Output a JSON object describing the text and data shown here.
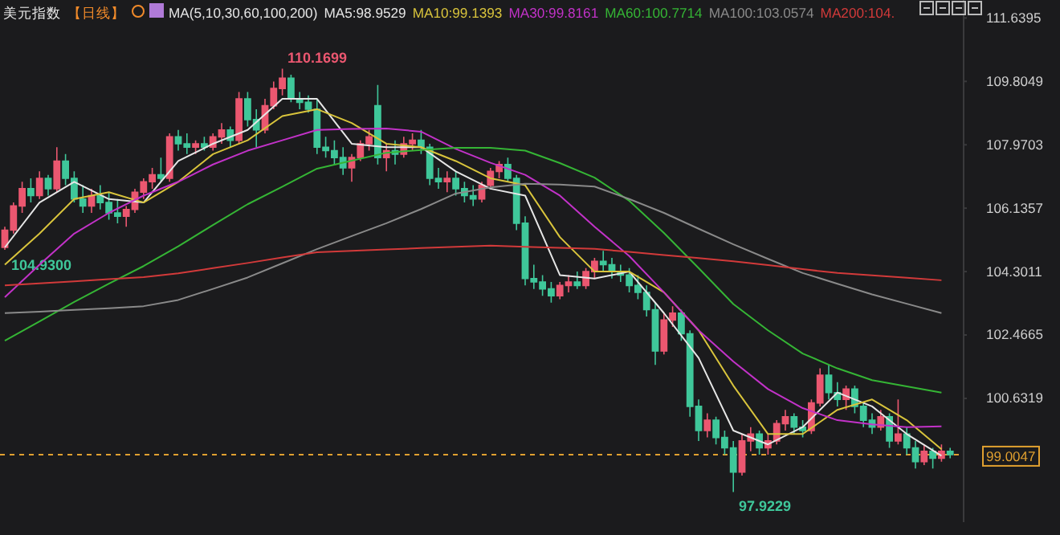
{
  "chart_data": [
    {
      "type": "candlestick",
      "title": "美元指数",
      "subtitle": "【日线】",
      "annotations": [
        "110.1699",
        "104.9300",
        "97.9229"
      ],
      "categories": [
        null,
        null,
        null,
        null,
        null,
        null,
        null,
        null,
        null,
        null,
        null,
        null,
        null,
        null,
        null,
        null,
        null,
        null,
        null,
        null,
        null,
        null,
        null,
        null,
        null,
        null,
        null,
        null,
        null,
        null,
        null,
        null,
        null,
        null,
        null,
        null,
        null,
        null,
        null,
        null,
        null,
        null,
        null,
        null,
        null,
        null,
        null,
        null,
        null,
        null,
        null,
        null,
        null,
        null,
        null,
        null,
        null,
        null,
        null,
        null,
        null,
        null,
        null,
        null,
        null,
        null,
        null,
        null,
        null,
        null,
        null,
        null,
        null,
        null,
        null,
        null,
        null,
        null,
        null,
        null,
        null,
        null,
        null,
        null,
        null,
        null,
        null,
        null,
        null,
        null,
        null,
        null,
        null,
        null,
        null,
        null,
        null,
        null,
        null,
        null,
        null,
        null,
        null,
        null,
        null,
        null,
        null,
        null,
        null,
        null
      ],
      "ohlc": [
        [
          105.0,
          105.6,
          104.93,
          105.5
        ],
        [
          105.5,
          106.3,
          105.4,
          106.2
        ],
        [
          106.2,
          106.9,
          106.0,
          106.7
        ],
        [
          106.7,
          107.0,
          106.3,
          106.5
        ],
        [
          106.5,
          107.2,
          106.4,
          107.0
        ],
        [
          107.0,
          107.1,
          106.5,
          106.7
        ],
        [
          106.7,
          107.9,
          106.6,
          107.5
        ],
        [
          107.5,
          107.7,
          106.8,
          107.0
        ],
        [
          107.0,
          107.2,
          106.3,
          106.4
        ],
        [
          106.4,
          106.8,
          106.0,
          106.2
        ],
        [
          106.2,
          106.7,
          106.0,
          106.5
        ],
        [
          106.5,
          106.8,
          106.1,
          106.3
        ],
        [
          106.3,
          106.6,
          105.8,
          106.0
        ],
        [
          106.0,
          106.4,
          105.7,
          105.9
        ],
        [
          105.9,
          106.2,
          105.6,
          106.1
        ],
        [
          106.1,
          106.7,
          106.0,
          106.6
        ],
        [
          106.6,
          107.0,
          106.4,
          106.9
        ],
        [
          106.9,
          107.3,
          106.7,
          107.1
        ],
        [
          107.1,
          107.6,
          106.9,
          107.0
        ],
        [
          107.0,
          108.3,
          106.9,
          108.2
        ],
        [
          108.2,
          108.4,
          107.8,
          108.0
        ],
        [
          108.0,
          108.3,
          107.7,
          107.9
        ],
        [
          107.9,
          108.1,
          107.7,
          108.0
        ],
        [
          108.0,
          108.2,
          107.8,
          107.9
        ],
        [
          107.9,
          108.3,
          107.8,
          108.2
        ],
        [
          108.2,
          108.6,
          108.0,
          108.4
        ],
        [
          108.4,
          108.5,
          107.9,
          108.1
        ],
        [
          108.1,
          109.5,
          108.0,
          109.3
        ],
        [
          109.3,
          109.5,
          108.5,
          108.7
        ],
        [
          108.7,
          109.0,
          107.9,
          108.4
        ],
        [
          108.4,
          109.3,
          108.3,
          109.1
        ],
        [
          109.1,
          109.8,
          109.0,
          109.6
        ],
        [
          109.6,
          110.1699,
          109.4,
          109.9
        ],
        [
          109.9,
          110.0,
          109.2,
          109.3
        ],
        [
          109.3,
          109.5,
          109.0,
          109.2
        ],
        [
          109.2,
          109.4,
          108.9,
          109.0
        ],
        [
          109.0,
          109.3,
          107.7,
          107.9
        ],
        [
          107.9,
          108.2,
          107.6,
          107.8
        ],
        [
          107.8,
          108.1,
          107.4,
          107.6
        ],
        [
          107.6,
          107.9,
          107.1,
          107.3
        ],
        [
          107.3,
          107.7,
          106.9,
          107.6
        ],
        [
          107.6,
          108.1,
          107.5,
          108.0
        ],
        [
          108.0,
          108.4,
          107.8,
          108.2
        ],
        [
          109.1,
          109.7,
          107.4,
          107.6
        ],
        [
          107.6,
          108.0,
          107.2,
          107.8
        ],
        [
          107.8,
          108.1,
          107.4,
          107.7
        ],
        [
          107.7,
          108.2,
          107.6,
          108.0
        ],
        [
          108.0,
          108.3,
          107.8,
          108.1
        ],
        [
          108.1,
          108.4,
          107.7,
          107.9
        ],
        [
          107.9,
          108.0,
          106.8,
          107.0
        ],
        [
          107.0,
          107.3,
          106.7,
          106.9
        ],
        [
          106.9,
          107.2,
          106.6,
          107.0
        ],
        [
          107.0,
          107.2,
          106.5,
          106.7
        ],
        [
          106.7,
          106.9,
          106.3,
          106.5
        ],
        [
          106.5,
          106.8,
          106.2,
          106.4
        ],
        [
          106.4,
          106.9,
          106.3,
          106.8
        ],
        [
          106.8,
          107.3,
          106.7,
          107.2
        ],
        [
          107.2,
          107.5,
          107.0,
          107.4
        ],
        [
          107.4,
          107.6,
          106.9,
          107.0
        ],
        [
          107.0,
          107.1,
          105.5,
          105.7
        ],
        [
          105.7,
          105.9,
          103.9,
          104.1
        ],
        [
          104.1,
          104.5,
          103.8,
          104.0
        ],
        [
          104.0,
          104.2,
          103.6,
          103.8
        ],
        [
          103.8,
          104.0,
          103.4,
          103.6
        ],
        [
          103.6,
          104.0,
          103.5,
          103.9
        ],
        [
          103.9,
          104.2,
          103.7,
          104.0
        ],
        [
          104.0,
          104.3,
          103.8,
          103.9
        ],
        [
          103.9,
          104.4,
          103.8,
          104.3
        ],
        [
          104.3,
          104.7,
          104.1,
          104.6
        ],
        [
          104.6,
          104.9,
          104.3,
          104.5
        ],
        [
          104.5,
          104.7,
          104.1,
          104.3
        ],
        [
          104.3,
          104.5,
          104.0,
          104.2
        ],
        [
          104.2,
          104.4,
          103.7,
          103.9
        ],
        [
          103.9,
          104.2,
          103.5,
          103.7
        ],
        [
          103.7,
          103.9,
          103.0,
          103.2
        ],
        [
          103.2,
          103.4,
          101.6,
          102.0
        ],
        [
          102.0,
          103.1,
          101.9,
          102.9
        ],
        [
          102.9,
          103.3,
          102.7,
          103.1
        ],
        [
          103.1,
          103.2,
          102.3,
          102.5
        ],
        [
          102.5,
          102.6,
          100.1,
          100.4
        ],
        [
          100.4,
          100.6,
          99.4,
          99.7
        ],
        [
          99.7,
          100.2,
          99.5,
          100.0
        ],
        [
          100.0,
          100.1,
          99.3,
          99.5
        ],
        [
          99.5,
          99.7,
          99.0,
          99.2
        ],
        [
          99.2,
          99.4,
          97.9229,
          98.5
        ],
        [
          98.5,
          99.6,
          98.4,
          99.4
        ],
        [
          99.4,
          99.8,
          99.1,
          99.6
        ],
        [
          99.6,
          99.7,
          99.0,
          99.2
        ],
        [
          99.2,
          99.6,
          99.0,
          99.4
        ],
        [
          99.4,
          100.0,
          99.3,
          99.9
        ],
        [
          99.9,
          100.3,
          99.7,
          100.1
        ],
        [
          100.1,
          100.2,
          99.6,
          99.8
        ],
        [
          99.8,
          100.0,
          99.5,
          99.7
        ],
        [
          99.7,
          100.6,
          99.6,
          100.5
        ],
        [
          100.5,
          101.5,
          100.4,
          101.3
        ],
        [
          101.3,
          101.6,
          100.6,
          100.8
        ],
        [
          100.8,
          101.1,
          100.4,
          100.6
        ],
        [
          100.6,
          101.0,
          100.3,
          100.9
        ],
        [
          100.9,
          101.0,
          100.2,
          100.4
        ],
        [
          100.4,
          100.5,
          99.8,
          100.0
        ],
        [
          100.0,
          100.2,
          99.6,
          99.8
        ],
        [
          99.8,
          100.3,
          99.7,
          100.1
        ],
        [
          100.1,
          100.2,
          99.2,
          99.4
        ],
        [
          99.4,
          100.6,
          99.3,
          99.6
        ],
        [
          99.6,
          99.8,
          99.0,
          99.2
        ],
        [
          99.2,
          99.4,
          98.6,
          98.8
        ],
        [
          98.8,
          99.3,
          98.7,
          99.1
        ],
        [
          99.1,
          99.2,
          98.6,
          98.9
        ],
        [
          98.9,
          99.3,
          98.8,
          99.1
        ],
        [
          99.1,
          99.2,
          98.9,
          99.0047
        ]
      ],
      "ylim": [
        97.05,
        112.16
      ],
      "yticks": [
        100.6319,
        102.4665,
        104.3011,
        106.1357,
        107.9703,
        109.8049,
        111.6395
      ],
      "ref_lines": [
        {
          "axis": "y",
          "value": 99.0047,
          "label": "99.0047",
          "color": "#e0a030",
          "line_style": "dashed"
        }
      ]
    },
    {
      "type": "line",
      "annotations": [
        "MA(5,10,30,60,100,200)"
      ],
      "categories": [
        null,
        null,
        null,
        null,
        null,
        null,
        null,
        null,
        null,
        null,
        null,
        null,
        null,
        null,
        null,
        null,
        null,
        null,
        null,
        null,
        null,
        null,
        null,
        null,
        null,
        null,
        null,
        null
      ],
      "series": [
        {
          "name": "MA5:98.9529",
          "color": "#e6e6e6",
          "values": [
            105.0,
            106.3,
            106.9,
            106.4,
            106.3,
            107.5,
            108.0,
            108.4,
            109.3,
            109.3,
            108.0,
            107.9,
            107.9,
            107.2,
            106.7,
            106.5,
            104.2,
            104.1,
            104.3,
            103.1,
            101.8,
            99.7,
            99.3,
            99.8,
            100.8,
            100.4,
            99.6,
            98.97
          ]
        },
        {
          "name": "MA10:99.1393",
          "color": "#d9c43c",
          "values": [
            104.5,
            105.4,
            106.4,
            106.6,
            106.3,
            106.9,
            107.7,
            108.1,
            108.8,
            109.0,
            108.6,
            108.0,
            107.9,
            107.5,
            107.0,
            106.8,
            105.3,
            104.3,
            104.3,
            103.7,
            102.6,
            101.0,
            99.6,
            99.6,
            100.3,
            100.6,
            100.0,
            99.16
          ]
        },
        {
          "name": "MA30:99.8161",
          "color": "#c232c8",
          "values": [
            103.56,
            104.5,
            105.4,
            106.0,
            106.5,
            106.9,
            107.4,
            107.8,
            108.1,
            108.4,
            108.43,
            108.44,
            108.35,
            107.85,
            107.45,
            107.1,
            106.5,
            105.6,
            104.75,
            103.7,
            102.6,
            101.7,
            100.9,
            100.35,
            100.0,
            99.88,
            99.8,
            99.82
          ]
        },
        {
          "name": "MA60:100.7714",
          "color": "#35b535",
          "values": [
            102.3,
            102.86,
            103.42,
            103.95,
            104.46,
            105.03,
            105.65,
            106.25,
            106.76,
            107.28,
            107.51,
            107.74,
            107.82,
            107.88,
            107.88,
            107.8,
            107.44,
            107.02,
            106.35,
            105.42,
            104.4,
            103.36,
            102.6,
            101.93,
            101.5,
            101.16,
            100.98,
            100.8
          ]
        },
        {
          "name": "MA100:103.0574",
          "color": "#8a8a8a",
          "values": [
            103.1,
            103.14,
            103.19,
            103.24,
            103.3,
            103.48,
            103.8,
            104.13,
            104.54,
            104.95,
            105.33,
            105.7,
            106.11,
            106.56,
            106.74,
            106.84,
            106.82,
            106.76,
            106.4,
            106.0,
            105.54,
            105.09,
            104.67,
            104.26,
            103.95,
            103.64,
            103.37,
            103.1
          ]
        },
        {
          "name": "MA200:104.",
          "color": "#d23a3a",
          "values": [
            103.9,
            103.96,
            104.02,
            104.08,
            104.14,
            104.25,
            104.4,
            104.55,
            104.71,
            104.86,
            104.9,
            104.94,
            104.98,
            105.02,
            105.05,
            105.02,
            104.99,
            104.96,
            104.87,
            104.78,
            104.69,
            104.6,
            104.49,
            104.37,
            104.26,
            104.19,
            104.12,
            104.05
          ]
        }
      ],
      "ylim": [
        97.05,
        112.16
      ],
      "yticks": [
        100.6319,
        102.4665,
        104.3011,
        106.1357,
        107.9703,
        109.8049,
        111.6395
      ],
      "legend": "top",
      "tick_labels": false
    }
  ]
}
